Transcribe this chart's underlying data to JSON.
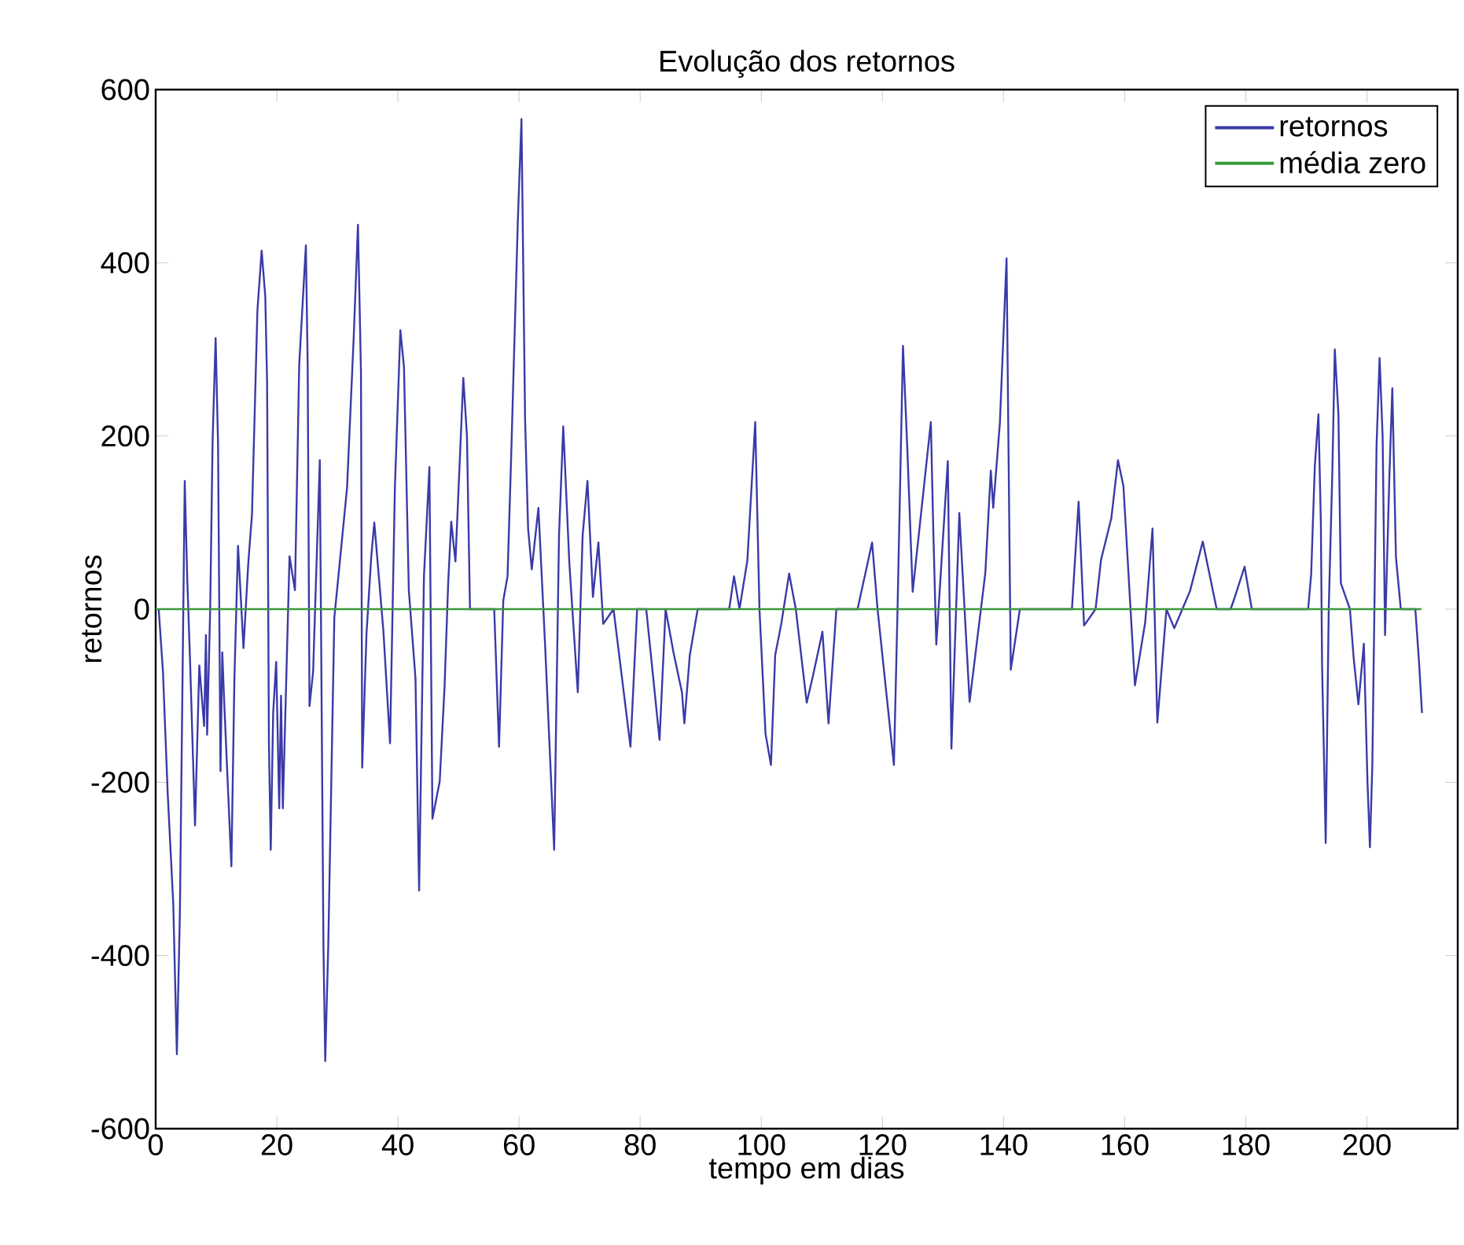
{
  "chart_data": {
    "type": "line",
    "title": "Evolução dos retornos",
    "xlabel": "tempo em dias",
    "ylabel": "retornos",
    "xlim": [
      0,
      215
    ],
    "ylim": [
      -600,
      600
    ],
    "xticks": [
      0,
      20,
      40,
      60,
      80,
      100,
      120,
      140,
      160,
      180,
      200
    ],
    "yticks": [
      -600,
      -400,
      -200,
      0,
      200,
      400,
      600
    ],
    "grid": false,
    "legend": "top right",
    "series": [
      {
        "name": "retornos",
        "color": "#3a3aa8",
        "x": [
          0.5,
          1.2,
          2.0,
          2.9,
          3.5,
          4.0,
          4.8,
          5.2,
          5.7,
          6.5,
          7.2,
          8.0,
          8.3,
          8.5,
          9.0,
          9.4,
          9.9,
          10.3,
          10.7,
          11.0,
          11.3,
          12.5,
          13.0,
          13.6,
          14.5,
          15.3,
          15.9,
          16.8,
          17.5,
          18.1,
          18.4,
          18.7,
          19.0,
          19.4,
          19.9,
          20.4,
          20.7,
          21.0,
          22.1,
          23.0,
          23.7,
          24.8,
          25.1,
          25.4,
          26.0,
          27.1,
          27.7,
          28.0,
          28.5,
          29.5,
          31.6,
          32.7,
          33.4,
          33.9,
          34.1,
          34.8,
          35.6,
          36.1,
          37.6,
          38.7,
          39.5,
          40.4,
          41.0,
          41.8,
          42.9,
          43.5,
          44.3,
          45.2,
          45.7,
          46.9,
          47.7,
          48.3,
          48.8,
          49.5,
          50.8,
          51.4,
          51.9,
          55.9,
          56.7,
          57.4,
          58.1,
          58.7,
          59.8,
          60.4,
          61.0,
          61.5,
          62.1,
          63.2,
          64.3,
          65.8,
          66.6,
          67.3,
          68.3,
          69.7,
          70.5,
          71.3,
          72.2,
          73.1,
          73.9,
          75.6,
          78.4,
          79.5,
          81.0,
          83.2,
          84.2,
          85.5,
          86.9,
          87.3,
          88.2,
          89.5,
          94.7,
          95.5,
          96.4,
          97.7,
          99.0,
          99.7,
          100.7,
          101.6,
          102.3,
          103.3,
          104.6,
          105.7,
          107.5,
          108.5,
          110.1,
          111.1,
          112.4,
          115.9,
          118.3,
          119.2,
          121.9,
          122.5,
          123.4,
          124.1,
          125.0,
          128.0,
          128.4,
          128.9,
          130.8,
          131.4,
          132.7,
          134.4,
          137.0,
          137.9,
          138.3,
          139.4,
          140.5,
          141.2,
          142.7,
          151.3,
          152.4,
          153.3,
          155.2,
          156.1,
          157.8,
          158.9,
          159.8,
          161.7,
          163.4,
          164.6,
          165.4,
          166.9,
          168.2,
          170.8,
          172.9,
          175.2,
          177.5,
          178.1,
          179.8,
          181.0,
          190.3,
          190.8,
          191.4,
          192.0,
          192.4,
          192.6,
          193.0,
          193.2,
          193.7,
          194.3,
          194.7,
          195.3,
          195.7,
          197.2,
          197.8,
          198.6,
          199.5,
          200.1,
          200.5,
          200.9,
          201.6,
          202.1,
          202.6,
          203.0,
          203.7,
          204.2,
          204.8,
          205.6,
          208.0,
          208.6,
          209.1
        ],
        "values": [
          0,
          -72,
          -215,
          -340,
          -514,
          -350,
          148,
          38,
          -65,
          -250,
          -65,
          -135,
          -30,
          -145,
          0,
          195,
          313,
          190,
          -187,
          -50,
          -105,
          -297,
          -80,
          73,
          -45,
          54,
          109,
          345,
          414,
          361,
          260,
          -155,
          -278,
          -120,
          -61,
          -230,
          -100,
          -230,
          61,
          22,
          282,
          420,
          282,
          -112,
          -72,
          172,
          -388,
          -522,
          -388,
          -10,
          140,
          314,
          444,
          274,
          -183,
          -30,
          61,
          100,
          -25,
          -155,
          140,
          322,
          280,
          22,
          -80,
          -325,
          38,
          164,
          -242,
          -199,
          -90,
          30,
          101,
          55,
          267,
          200,
          0,
          0,
          -159,
          10,
          38,
          176,
          448,
          566,
          219,
          93,
          46,
          117,
          -41,
          -278,
          85,
          211,
          54,
          -96,
          85,
          148,
          14,
          77,
          -17,
          0,
          -159,
          0,
          0,
          -151,
          0,
          -50,
          -96,
          -132,
          -53,
          0,
          0,
          38,
          0,
          56,
          216,
          0,
          -144,
          -180,
          -53,
          -17,
          41,
          0,
          -108,
          -78,
          -26,
          -132,
          0,
          0,
          77,
          0,
          -180,
          0,
          304,
          188,
          20,
          216,
          92,
          -41,
          171,
          -161,
          111,
          -107,
          42,
          160,
          117,
          215,
          405,
          -70,
          0,
          0,
          124,
          -19,
          0,
          57,
          105,
          172,
          142,
          -88,
          -15,
          93,
          -131,
          0,
          -22,
          21,
          78,
          0,
          0,
          12,
          49,
          0,
          0,
          40,
          165,
          225,
          100,
          -65,
          -200,
          -270,
          0,
          160,
          300,
          225,
          30,
          0,
          -55,
          -110,
          -40,
          -200,
          -275,
          -180,
          190,
          290,
          200,
          -30,
          150,
          255,
          60,
          0,
          0,
          -60,
          -120
        ]
      },
      {
        "name": "média zero",
        "color": "#3a9a3a",
        "x": [
          0,
          209
        ],
        "values": [
          0,
          0
        ]
      }
    ]
  }
}
